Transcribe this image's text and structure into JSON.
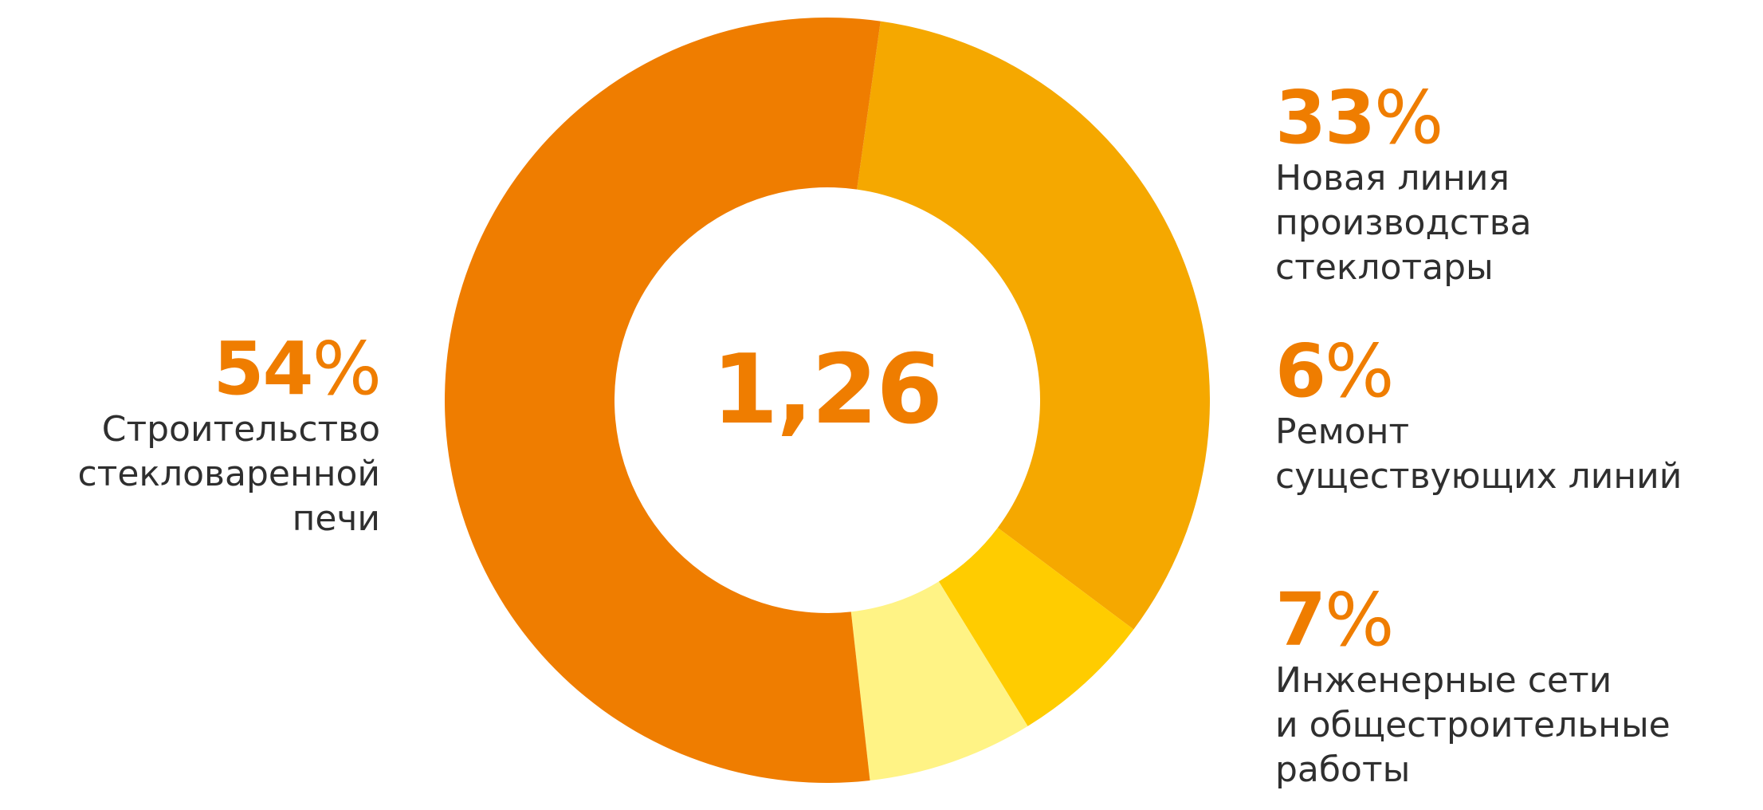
{
  "chart_data": {
    "type": "pie",
    "donut": true,
    "center_label": "1,26",
    "slices": [
      {
        "value": 33,
        "pct_label": "33",
        "label_lines": [
          "Новая линия",
          "производства",
          "стеклотары"
        ],
        "color": "#f5a800"
      },
      {
        "value": 6,
        "pct_label": "6",
        "label_lines": [
          "Ремонт",
          "существующих линий"
        ],
        "color": "#ffcc00"
      },
      {
        "value": 7,
        "pct_label": "7",
        "label_lines": [
          "Инженерные сети",
          "и общестроительные",
          "работы"
        ],
        "color": "#fff385"
      },
      {
        "value": 54,
        "pct_label": "54",
        "label_lines": [
          "Строительство",
          "стекловаренной",
          "печи"
        ],
        "color": "#ef7d00"
      }
    ],
    "percent_sign": "%"
  },
  "colors": {
    "accent": "#ef7d00",
    "text": "#2f2f2f"
  }
}
